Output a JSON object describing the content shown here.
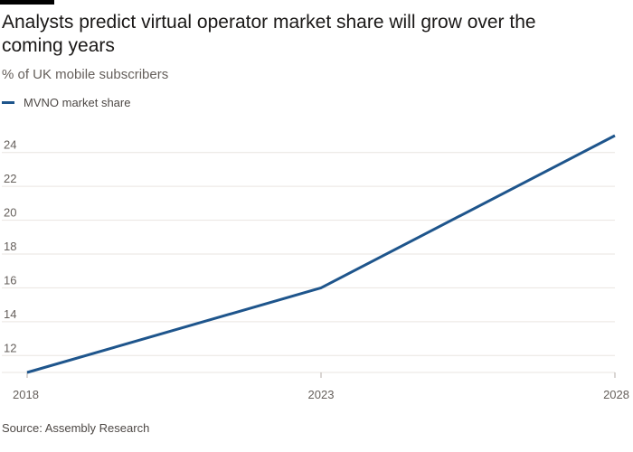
{
  "title": "Analysts predict virtual operator market share will grow over the coming years",
  "subtitle": "% of UK mobile subscribers",
  "source": "Source: Assembly Research",
  "colors": {
    "series": "#1e558c",
    "grid": "#e9e5e1",
    "axis": "#b5aea8"
  },
  "chart_data": {
    "type": "line",
    "title": "Analysts predict virtual operator market share will grow over the coming years",
    "subtitle": "% of UK mobile subscribers",
    "x": [
      2018,
      2023,
      2028
    ],
    "series": [
      {
        "name": "MVNO market share",
        "values": [
          11,
          16,
          25
        ]
      }
    ],
    "xlim": [
      2018,
      2028
    ],
    "ylim": [
      11,
      25
    ],
    "x_ticks": [
      "2018",
      "2023",
      "2028"
    ],
    "y_ticks": [
      12,
      14,
      16,
      18,
      20,
      22,
      24
    ],
    "grid": "horizontal",
    "legend_position": "top-left"
  }
}
